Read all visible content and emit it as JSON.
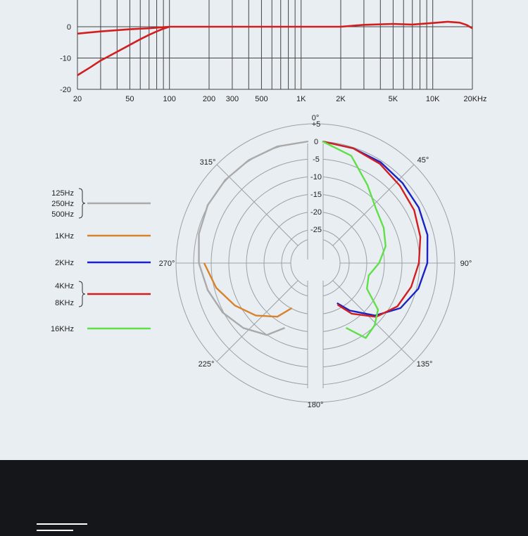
{
  "chart_data": [
    {
      "type": "line",
      "xscale": "log",
      "xlim": [
        20,
        20000
      ],
      "ylim": [
        -20,
        0
      ],
      "y_ticks": [
        "0",
        "-10",
        "-20"
      ],
      "y_tick_values": [
        0,
        -10,
        -20
      ],
      "x_ticks": [
        "20",
        "50",
        "100",
        "200",
        "300",
        "500",
        "1K",
        "2K",
        "5K",
        "10K",
        "20KHz"
      ],
      "x_tick_values": [
        20,
        50,
        100,
        200,
        300,
        500,
        1000,
        2000,
        5000,
        10000,
        20000
      ],
      "grid": true,
      "color": "#d11f1f",
      "series": [
        {
          "x": [
            20,
            30,
            50,
            70,
            100,
            200,
            500,
            1000,
            2000,
            3000,
            5000,
            7000,
            10000,
            13000,
            16000,
            18000,
            20000
          ],
          "y": [
            -2.2,
            -1.5,
            -0.8,
            -0.5,
            0,
            0,
            0,
            0,
            0,
            0.6,
            0.9,
            0.7,
            1.2,
            1.6,
            1.3,
            0.6,
            -0.5
          ]
        },
        {
          "x": [
            20,
            25,
            30,
            40,
            50,
            60,
            70,
            80,
            90,
            100
          ],
          "y": [
            -15.5,
            -13,
            -10.8,
            -8,
            -5.8,
            -4,
            -2.6,
            -1.5,
            -0.6,
            0
          ]
        }
      ]
    },
    {
      "type": "polar",
      "angle_labels": [
        "0°",
        "45°",
        "90°",
        "135°",
        "180°",
        "225°",
        "270°",
        "315°"
      ],
      "radial_ticks": [
        "+5",
        "0",
        "-5",
        "-10",
        "-15",
        "-20",
        "-25"
      ],
      "radial_tick_values": [
        5,
        0,
        -5,
        -10,
        -15,
        -20,
        -25
      ],
      "rlim": [
        -30,
        5
      ],
      "legend": [
        {
          "labels": [
            "125Hz",
            "250Hz",
            "500Hz"
          ],
          "color": "#aaaaaa"
        },
        {
          "labels": [
            "1KHz"
          ],
          "color": "#d9822b"
        },
        {
          "labels": [
            "2KHz"
          ],
          "color": "#1a22c4"
        },
        {
          "labels": [
            "4KHz",
            "8KHz"
          ],
          "color": "#d11f1f"
        },
        {
          "labels": [
            "16KHz"
          ],
          "color": "#5fe048"
        }
      ],
      "series": [
        {
          "name": "125Hz / 250Hz / 500Hz",
          "color": "#aaaaaa",
          "side": "left",
          "angles": [
            0,
            15,
            30,
            45,
            60,
            75,
            90,
            105,
            120,
            135,
            150,
            160
          ],
          "values": [
            0,
            -0.3,
            -0.8,
            -1.2,
            -1.6,
            -2.4,
            -3.5,
            -5,
            -6.5,
            -8.5,
            -11,
            -15
          ]
        },
        {
          "name": "1KHz",
          "color": "#d9822b",
          "side": "left",
          "angles": [
            90,
            105,
            120,
            135,
            150,
            160
          ],
          "values": [
            -5,
            -7.5,
            -10.5,
            -13.5,
            -17,
            -21
          ]
        },
        {
          "name": "2KHz",
          "color": "#1a22c4",
          "side": "right",
          "angles": [
            0,
            15,
            30,
            45,
            60,
            75,
            90,
            105,
            120,
            135,
            150,
            160
          ],
          "values": [
            0,
            -0.8,
            -1.5,
            -2.4,
            -3,
            -3.7,
            -4.8,
            -6.4,
            -9,
            -13.5,
            -19,
            -22.5
          ]
        },
        {
          "name": "4KHz / 8KHz",
          "color": "#d11f1f",
          "side": "right",
          "angles": [
            0,
            15,
            30,
            45,
            60,
            75,
            90,
            105,
            120,
            135,
            150,
            160
          ],
          "values": [
            0,
            -0.8,
            -2,
            -3.5,
            -4.5,
            -5.8,
            -7.2,
            -8.5,
            -10,
            -13,
            -18,
            -22
          ]
        },
        {
          "name": "16KHz",
          "color": "#5fe048",
          "side": "right",
          "angles": [
            0,
            15,
            30,
            45,
            60,
            75,
            90,
            105,
            120,
            130,
            140,
            150,
            160
          ],
          "values": [
            0,
            -3,
            -9,
            -13,
            -14.5,
            -16,
            -18.5,
            -21,
            -20,
            -14,
            -11.5,
            -10,
            -15
          ]
        }
      ]
    }
  ]
}
